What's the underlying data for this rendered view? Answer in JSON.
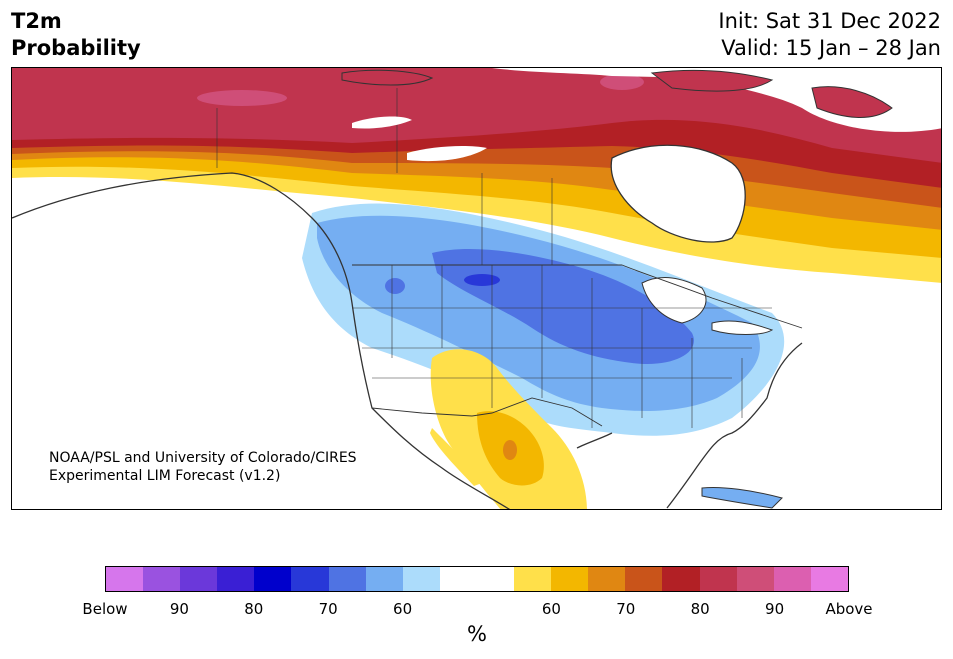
{
  "title": {
    "line1": "T2m",
    "line2": "Probability"
  },
  "init_label": "Init: Sat 31 Dec 2022",
  "valid_label": "Valid: 15 Jan – 28 Jan",
  "credit": {
    "line1": "NOAA/PSL and University of Colorado/CIRES",
    "line2": "Experimental LIM Forecast (v1.2)"
  },
  "colorbar": {
    "colors": [
      "#d676ec",
      "#9a52e0",
      "#6b38da",
      "#3a1fd4",
      "#0000cc",
      "#2838d8",
      "#4f73e3",
      "#75aef2",
      "#acdcfb",
      "#ffffff",
      "#ffffff",
      "#ffe04a",
      "#f3b700",
      "#e08712",
      "#c9541a",
      "#b22025",
      "#c0344e",
      "#cf4e78",
      "#dc5fb0",
      "#e87ae3"
    ],
    "ticks": [
      "Below",
      "90",
      "80",
      "70",
      "60",
      "60",
      "70",
      "80",
      "90",
      "Above"
    ],
    "unit": "%"
  }
}
